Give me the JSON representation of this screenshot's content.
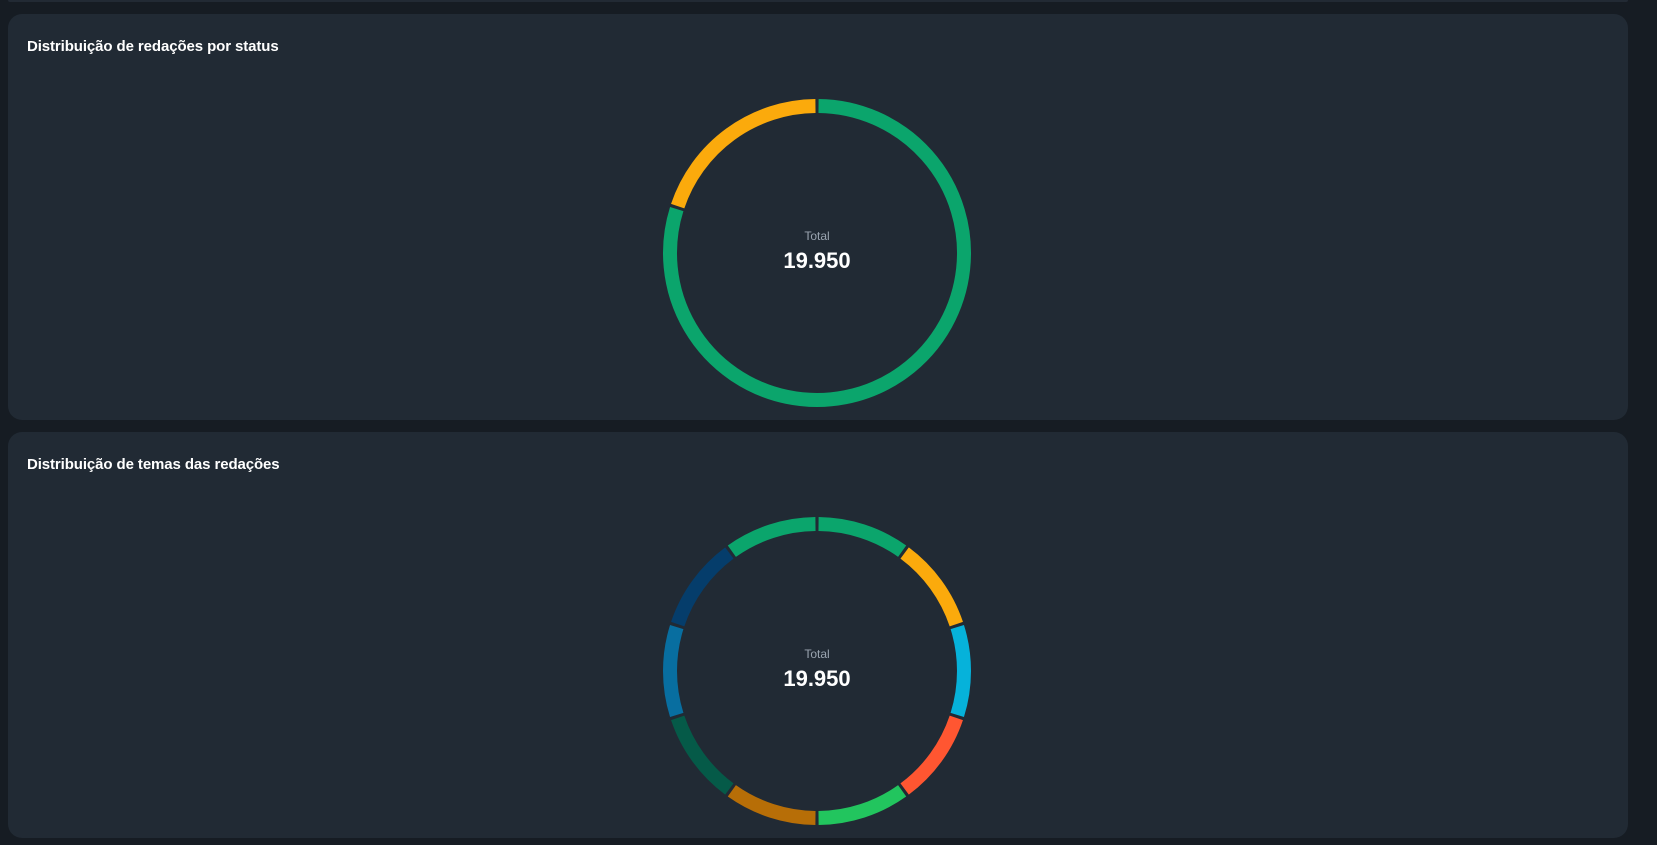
{
  "chart_data": [
    {
      "type": "pie",
      "title": "Distribuição de redações por status",
      "center_label": "Total",
      "center_value": "19.950",
      "ring_thickness": 0.09,
      "slices": [
        {
          "value": 80,
          "color": "#0ba56c"
        },
        {
          "value": 20,
          "color": "#fbaa0c"
        }
      ]
    },
    {
      "type": "pie",
      "title": "Distribuição de temas das redações",
      "center_label": "Total",
      "center_value": "19.950",
      "ring_thickness": 0.09,
      "slices": [
        {
          "value": 10,
          "color": "#0ba56c"
        },
        {
          "value": 10,
          "color": "#fbaa0c"
        },
        {
          "value": 10,
          "color": "#06b2da"
        },
        {
          "value": 10,
          "color": "#ff5631"
        },
        {
          "value": 10,
          "color": "#22c55e"
        },
        {
          "value": 10,
          "color": "#b76e07"
        },
        {
          "value": 10,
          "color": "#055a48"
        },
        {
          "value": 10,
          "color": "#086ea0"
        },
        {
          "value": 10,
          "color": "#053d6b"
        },
        {
          "value": 10,
          "color": "#0ba56c"
        }
      ]
    }
  ]
}
